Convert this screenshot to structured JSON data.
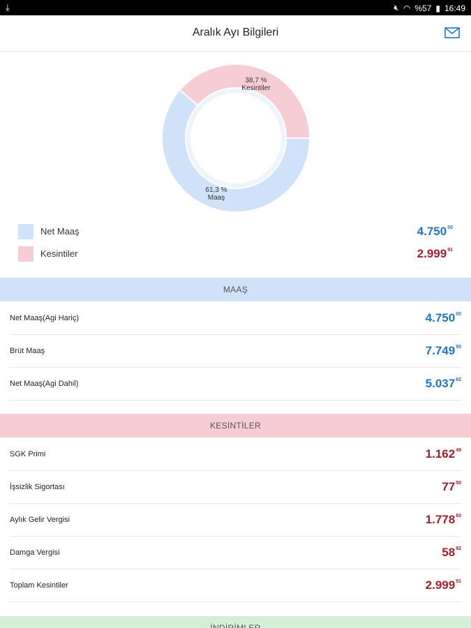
{
  "status_bar": {
    "download_icon": "download-arrow-icon",
    "battery_text": "%57",
    "time": "16:49"
  },
  "header": {
    "title": "Aralık Ayı Bilgileri",
    "mail_icon": "mail-icon"
  },
  "chart_data": {
    "type": "pie",
    "donut": true,
    "slices": [
      {
        "name": "Net Maaş",
        "label": "Maaş",
        "percent_text": "61,3 %",
        "value": 61.3,
        "color": "#cfe2f9"
      },
      {
        "name": "Kesintiler",
        "label": "Kesintiler",
        "percent_text": "38,7 %",
        "value": 38.7,
        "color": "#f6cdd4"
      }
    ]
  },
  "legend": [
    {
      "name": "Net Maaş",
      "value_main": "4.750",
      "value_dec": "00",
      "color": "#cfe2f9"
    },
    {
      "name": "Kesintiler",
      "value_main": "2.999",
      "value_dec": "91",
      "color": "#f6cdd4"
    }
  ],
  "sections": {
    "maas": {
      "title": "MAAŞ",
      "rows": [
        {
          "label": "Net Maaş(Agi Hariç)",
          "value_main": "4.750",
          "value_dec": "00"
        },
        {
          "label": "Brüt Maaş",
          "value_main": "7.749",
          "value_dec": "90"
        },
        {
          "label": "Net Maaş(Agi Dahil)",
          "value_main": "5.037",
          "value_dec": "82"
        }
      ]
    },
    "kesintiler": {
      "title": "KESİNTİLER",
      "rows": [
        {
          "label": "SGK Primi",
          "value_main": "1.162",
          "value_dec": "49"
        },
        {
          "label": "İşsizlik Sigortası",
          "value_main": "77",
          "value_dec": "50"
        },
        {
          "label": "Aylık Gelir Vergisi",
          "value_main": "1.778",
          "value_dec": "60"
        },
        {
          "label": "Damga Vergisi",
          "value_main": "58",
          "value_dec": "82"
        },
        {
          "label": "Toplam Kesintiler",
          "value_main": "2.999",
          "value_dec": "91"
        }
      ]
    },
    "indirimler": {
      "title": "İNDİRİMLER"
    }
  }
}
